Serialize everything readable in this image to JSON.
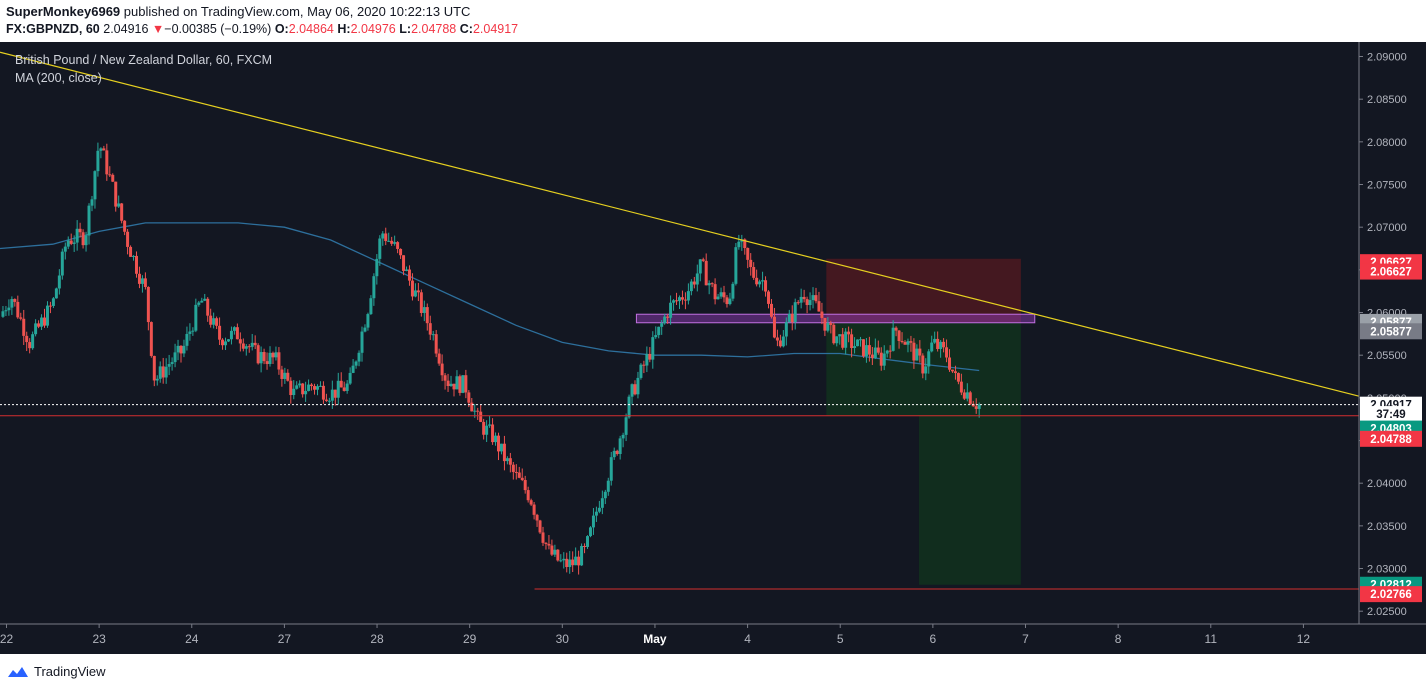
{
  "header": {
    "author": "SuperMonkey6969",
    "published_text": "published on TradingView.com, May 06, 2020 10:22:13 UTC",
    "symbol": "FX:GBPNZD, 60",
    "last": "2.04916",
    "change_arrow": "▼",
    "change": "−0.00385 (−0.19%)",
    "o_label": "O:",
    "o_val": "2.04864",
    "h_label": "H:",
    "h_val": "2.04976",
    "l_label": "L:",
    "l_val": "2.04788",
    "c_label": "C:",
    "c_val": "2.04917"
  },
  "legend": {
    "title": "British Pound / New Zealand Dollar, 60, FXCM",
    "indicator": "MA (200, close)"
  },
  "footer": {
    "brand": "TradingView"
  },
  "colors": {
    "background": "#131722",
    "up": "#26a69a",
    "down": "#ef5350",
    "ma": "#2d6f9c",
    "trendline": "#e6d020",
    "support": "#d32f2f",
    "stop_zone": "#4a1820",
    "target_zone": "#112e1f",
    "resistance_box": "#9a3fc0"
  },
  "chart_data": {
    "type": "candlestick",
    "y_ticks": [
      "2.09000",
      "2.08500",
      "2.08000",
      "2.07500",
      "2.07000",
      "2.06500",
      "2.06000",
      "2.05500",
      "2.05000",
      "2.04500",
      "2.04000",
      "2.03500",
      "2.03000",
      "2.02500"
    ],
    "ylim": [
      2.0235,
      2.0917
    ],
    "x_ticks": [
      {
        "label": "22",
        "t": 0.5
      },
      {
        "label": "23",
        "t": 1.5
      },
      {
        "label": "24",
        "t": 2.5
      },
      {
        "label": "27",
        "t": 3.5
      },
      {
        "label": "28",
        "t": 4.5
      },
      {
        "label": "29",
        "t": 5.5
      },
      {
        "label": "30",
        "t": 6.5
      },
      {
        "label": "May",
        "t": 7.5
      },
      {
        "label": "4",
        "t": 8.5
      },
      {
        "label": "5",
        "t": 9.5
      },
      {
        "label": "6",
        "t": 10.5
      },
      {
        "label": "7",
        "t": 11.5
      },
      {
        "label": "8",
        "t": 12.5
      },
      {
        "label": "11",
        "t": 13.5
      },
      {
        "label": "12",
        "t": 14.5
      }
    ],
    "xlim": [
      0.43,
      15.1
    ],
    "price_anchors": [
      [
        0.43,
        2.0595
      ],
      [
        0.55,
        2.062
      ],
      [
        0.75,
        2.0565
      ],
      [
        1.0,
        2.061
      ],
      [
        1.15,
        2.0685
      ],
      [
        1.35,
        2.069
      ],
      [
        1.5,
        2.08
      ],
      [
        1.65,
        2.0745
      ],
      [
        1.8,
        2.0685
      ],
      [
        2.0,
        2.0625
      ],
      [
        2.1,
        2.052
      ],
      [
        2.25,
        2.054
      ],
      [
        2.4,
        2.0555
      ],
      [
        2.6,
        2.0615
      ],
      [
        2.8,
        2.057
      ],
      [
        3.0,
        2.0575
      ],
      [
        3.2,
        2.055
      ],
      [
        3.4,
        2.0545
      ],
      [
        3.6,
        2.0505
      ],
      [
        3.8,
        2.0515
      ],
      [
        4.0,
        2.0505
      ],
      [
        4.2,
        2.0515
      ],
      [
        4.4,
        2.0605
      ],
      [
        4.55,
        2.0695
      ],
      [
        4.7,
        2.0675
      ],
      [
        4.9,
        2.0625
      ],
      [
        5.1,
        2.0575
      ],
      [
        5.25,
        2.052
      ],
      [
        5.45,
        2.0515
      ],
      [
        5.6,
        2.047
      ],
      [
        5.75,
        2.0455
      ],
      [
        5.95,
        2.0415
      ],
      [
        6.15,
        2.0385
      ],
      [
        6.35,
        2.032
      ],
      [
        6.5,
        2.0305
      ],
      [
        6.6,
        2.0305
      ],
      [
        6.75,
        2.032
      ],
      [
        6.9,
        2.038
      ],
      [
        7.1,
        2.0445
      ],
      [
        7.25,
        2.0505
      ],
      [
        7.45,
        2.0555
      ],
      [
        7.65,
        2.0605
      ],
      [
        7.85,
        2.0625
      ],
      [
        8.0,
        2.0655
      ],
      [
        8.15,
        2.062
      ],
      [
        8.3,
        2.0615
      ],
      [
        8.4,
        2.0685
      ],
      [
        8.55,
        2.0645
      ],
      [
        8.7,
        2.0635
      ],
      [
        8.8,
        2.056
      ],
      [
        8.95,
        2.059
      ],
      [
        9.1,
        2.0625
      ],
      [
        9.25,
        2.0605
      ],
      [
        9.4,
        2.0575
      ],
      [
        9.6,
        2.0565
      ],
      [
        9.8,
        2.0555
      ],
      [
        9.95,
        2.0545
      ],
      [
        10.1,
        2.058
      ],
      [
        10.25,
        2.056
      ],
      [
        10.4,
        2.0535
      ],
      [
        10.5,
        2.0565
      ],
      [
        10.65,
        2.055
      ],
      [
        10.75,
        2.052
      ],
      [
        10.88,
        2.0505
      ],
      [
        10.95,
        2.0495
      ],
      [
        11.0,
        2.0492
      ]
    ],
    "ma_200": [
      [
        0.43,
        2.0675
      ],
      [
        1.0,
        2.068
      ],
      [
        1.5,
        2.0695
      ],
      [
        2.0,
        2.0705
      ],
      [
        2.5,
        2.0705
      ],
      [
        3.0,
        2.0705
      ],
      [
        3.5,
        2.07
      ],
      [
        4.0,
        2.0685
      ],
      [
        4.5,
        2.066
      ],
      [
        5.0,
        2.0635
      ],
      [
        5.5,
        2.061
      ],
      [
        6.0,
        2.0585
      ],
      [
        6.5,
        2.0565
      ],
      [
        7.0,
        2.0555
      ],
      [
        7.5,
        2.055
      ],
      [
        8.0,
        2.055
      ],
      [
        8.5,
        2.0548
      ],
      [
        9.0,
        2.0552
      ],
      [
        9.5,
        2.0552
      ],
      [
        10.0,
        2.0545
      ],
      [
        10.5,
        2.0538
      ],
      [
        11.0,
        2.0532
      ]
    ],
    "trendline": {
      "from": [
        0.43,
        2.0905
      ],
      "to": [
        15.1,
        2.0502
      ]
    },
    "support_line": {
      "y": 2.0479
    },
    "low_line": {
      "y": 2.0276,
      "x_start": 6.2
    },
    "resistance_box": {
      "x0": 7.3,
      "x1": 11.6,
      "y0": 2.0588,
      "y1": 2.0598
    },
    "position": {
      "stop_zone": {
        "x0": 9.35,
        "x1": 11.45,
        "y0": 2.0588,
        "y1": 2.0663
      },
      "entry_zone": {
        "x0": 9.35,
        "x1": 11.45,
        "y0": 2.0479,
        "y1": 2.0588
      },
      "target_zone": {
        "x0": 10.35,
        "x1": 11.45,
        "y0": 2.0281,
        "y1": 2.0479
      }
    },
    "price_labels": [
      {
        "text": "2.06627",
        "y": 2.0659,
        "bg": "#f23645",
        "fg": "#ffffff"
      },
      {
        "text": "2.06627",
        "y": 2.0648,
        "bg": "#f23645",
        "fg": "#ffffff"
      },
      {
        "text": "2.05877",
        "y": 2.0589,
        "bg": "#9aa0a8",
        "fg": "#ffffff"
      },
      {
        "text": "2.05877",
        "y": 2.0578,
        "bg": "#787b86",
        "fg": "#ffffff"
      },
      {
        "text": "2.04917",
        "y": 2.0492,
        "bg": "#ffffff",
        "fg": "#131722"
      },
      {
        "text": "37:49",
        "y": 2.0481,
        "bg": "#ffffff",
        "fg": "#131722"
      },
      {
        "text": "2.04803",
        "y": 2.0464,
        "bg": "#089981",
        "fg": "#ffffff"
      },
      {
        "text": "2.04788",
        "y": 2.0452,
        "bg": "#f23645",
        "fg": "#ffffff"
      },
      {
        "text": "2.02812",
        "y": 2.0281,
        "bg": "#089981",
        "fg": "#ffffff"
      },
      {
        "text": "2.02766",
        "y": 2.027,
        "bg": "#f23645",
        "fg": "#ffffff"
      }
    ]
  }
}
